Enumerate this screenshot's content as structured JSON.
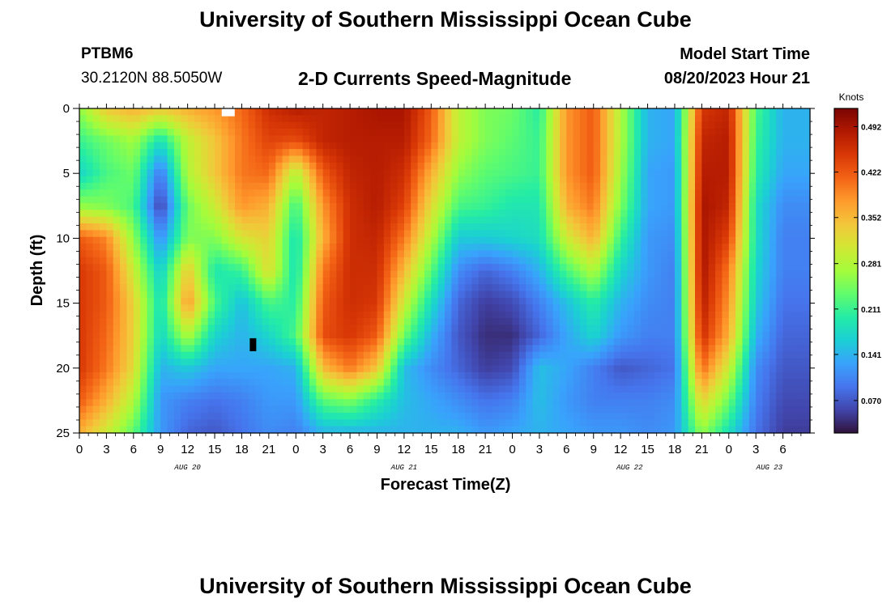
{
  "header": {
    "title": "University of Southern Mississippi Ocean Cube",
    "station_id": "PTBM6",
    "coordinates": "30.2120N  88.5050W",
    "subtitle": "2-D Currents Speed-Magnitude",
    "model_start_label": "Model Start Time",
    "model_start_value": "08/20/2023 Hour 21"
  },
  "footer": {
    "title": "University of Southern Mississippi Ocean Cube"
  },
  "chart_data": {
    "type": "heatmap",
    "title": "2-D Currents Speed-Magnitude",
    "xlabel": "Forecast Time(Z)",
    "ylabel": "Depth (ft)",
    "colorbar_label": "Knots",
    "colorbar_ticks": [
      0.07,
      0.141,
      0.211,
      0.281,
      0.352,
      0.422,
      0.492
    ],
    "colorbar_tick_labels": [
      "0.070",
      "0.141",
      "0.211",
      "0.281",
      "0.352",
      "0.422",
      "0.492"
    ],
    "color_range": [
      0.02,
      0.52
    ],
    "x_range_hours": [
      0,
      81
    ],
    "y_range_ft": [
      0,
      25
    ],
    "y_ticks": [
      0,
      5,
      10,
      15,
      20,
      25
    ],
    "y_tick_labels": [
      "0",
      "5",
      "10",
      "15",
      "20",
      "25"
    ],
    "x_tick_labels": [
      "0",
      "3",
      "6",
      "9",
      "12",
      "15",
      "18",
      "21",
      "0",
      "3",
      "6",
      "9",
      "12",
      "15",
      "18",
      "21",
      "0",
      "3",
      "6",
      "9",
      "12",
      "15",
      "18",
      "21",
      "0",
      "3",
      "6"
    ],
    "date_labels": [
      {
        "hour": 12,
        "label": "AUG 20"
      },
      {
        "hour": 36,
        "label": "AUG 21"
      },
      {
        "hour": 61,
        "label": "AUG 22"
      },
      {
        "hour": 76.5,
        "label": "AUG 23"
      }
    ],
    "time_hours_since_0z_aug20": [
      0,
      3,
      6,
      9,
      12,
      15,
      18,
      21,
      24,
      27,
      30,
      33,
      36,
      39,
      42,
      45,
      48,
      51,
      54,
      57,
      60,
      63,
      66,
      69,
      72,
      75,
      78
    ],
    "depths_ft": [
      0,
      2.5,
      5,
      7.5,
      10,
      12.5,
      15,
      17.5,
      20,
      22.5,
      25
    ],
    "speed_knots_by_depth": [
      [
        0.26,
        0.34,
        0.36,
        0.34,
        0.36,
        0.38,
        0.41,
        0.46,
        0.48,
        0.47,
        0.48,
        0.49,
        0.49,
        0.42,
        0.29,
        0.25,
        0.24,
        0.2,
        0.38,
        0.42,
        0.28,
        0.14,
        0.13,
        0.45,
        0.47,
        0.22,
        0.14
      ],
      [
        0.21,
        0.24,
        0.27,
        0.18,
        0.29,
        0.34,
        0.4,
        0.44,
        0.43,
        0.47,
        0.48,
        0.48,
        0.48,
        0.41,
        0.29,
        0.25,
        0.23,
        0.21,
        0.38,
        0.42,
        0.28,
        0.14,
        0.13,
        0.47,
        0.48,
        0.21,
        0.14
      ],
      [
        0.17,
        0.22,
        0.24,
        0.09,
        0.28,
        0.34,
        0.4,
        0.41,
        0.28,
        0.42,
        0.47,
        0.48,
        0.46,
        0.36,
        0.26,
        0.23,
        0.22,
        0.21,
        0.38,
        0.42,
        0.27,
        0.13,
        0.12,
        0.48,
        0.48,
        0.2,
        0.13
      ],
      [
        0.26,
        0.25,
        0.22,
        0.05,
        0.24,
        0.3,
        0.38,
        0.36,
        0.21,
        0.38,
        0.46,
        0.48,
        0.44,
        0.32,
        0.22,
        0.21,
        0.19,
        0.19,
        0.36,
        0.4,
        0.25,
        0.13,
        0.12,
        0.49,
        0.47,
        0.18,
        0.11
      ],
      [
        0.42,
        0.39,
        0.26,
        0.11,
        0.25,
        0.25,
        0.31,
        0.33,
        0.18,
        0.36,
        0.46,
        0.47,
        0.4,
        0.28,
        0.16,
        0.16,
        0.17,
        0.18,
        0.3,
        0.36,
        0.21,
        0.12,
        0.11,
        0.49,
        0.44,
        0.18,
        0.1
      ],
      [
        0.45,
        0.42,
        0.3,
        0.16,
        0.34,
        0.19,
        0.21,
        0.32,
        0.18,
        0.4,
        0.46,
        0.46,
        0.35,
        0.23,
        0.11,
        0.08,
        0.1,
        0.14,
        0.22,
        0.28,
        0.17,
        0.12,
        0.1,
        0.49,
        0.4,
        0.17,
        0.1
      ],
      [
        0.45,
        0.42,
        0.33,
        0.18,
        0.38,
        0.22,
        0.15,
        0.22,
        0.2,
        0.42,
        0.46,
        0.45,
        0.3,
        0.18,
        0.08,
        0.05,
        0.06,
        0.1,
        0.15,
        0.2,
        0.14,
        0.11,
        0.1,
        0.48,
        0.38,
        0.16,
        0.09
      ],
      [
        0.45,
        0.41,
        0.33,
        0.17,
        0.28,
        0.17,
        0.14,
        0.17,
        0.22,
        0.43,
        0.45,
        0.42,
        0.24,
        0.14,
        0.07,
        0.04,
        0.04,
        0.08,
        0.13,
        0.17,
        0.12,
        0.1,
        0.1,
        0.46,
        0.36,
        0.14,
        0.08
      ],
      [
        0.45,
        0.4,
        0.32,
        0.14,
        0.16,
        0.13,
        0.13,
        0.13,
        0.14,
        0.35,
        0.4,
        0.34,
        0.15,
        0.11,
        0.08,
        0.05,
        0.06,
        0.15,
        0.13,
        0.1,
        0.07,
        0.08,
        0.09,
        0.41,
        0.3,
        0.11,
        0.07
      ],
      [
        0.42,
        0.36,
        0.28,
        0.12,
        0.1,
        0.09,
        0.1,
        0.12,
        0.12,
        0.23,
        0.25,
        0.2,
        0.15,
        0.13,
        0.11,
        0.09,
        0.1,
        0.15,
        0.12,
        0.1,
        0.1,
        0.1,
        0.11,
        0.33,
        0.24,
        0.1,
        0.06
      ],
      [
        0.36,
        0.3,
        0.23,
        0.12,
        0.08,
        0.07,
        0.09,
        0.11,
        0.1,
        0.14,
        0.14,
        0.14,
        0.14,
        0.14,
        0.14,
        0.12,
        0.13,
        0.14,
        0.13,
        0.12,
        0.12,
        0.11,
        0.12,
        0.26,
        0.18,
        0.09,
        0.05
      ]
    ],
    "masked_cells": [
      {
        "hour": 16.5,
        "depth_ft_from": 0,
        "depth_ft_to": 0.6,
        "color": "#ffffff"
      },
      {
        "hour": 19.25,
        "depth_ft_from": 17.7,
        "depth_ft_to": 18.7,
        "color": "#000000"
      }
    ]
  },
  "colors": {
    "background": "#ffffff",
    "axes": "#000000",
    "colormap": [
      "#30123b",
      "#4145ab",
      "#4675ed",
      "#39a2fc",
      "#1bcfd4",
      "#24eca6",
      "#61fc6c",
      "#a4fc3b",
      "#d1e834",
      "#f3c63a",
      "#fe9b2d",
      "#f36315",
      "#d93806",
      "#b11901",
      "#7a0402"
    ]
  }
}
